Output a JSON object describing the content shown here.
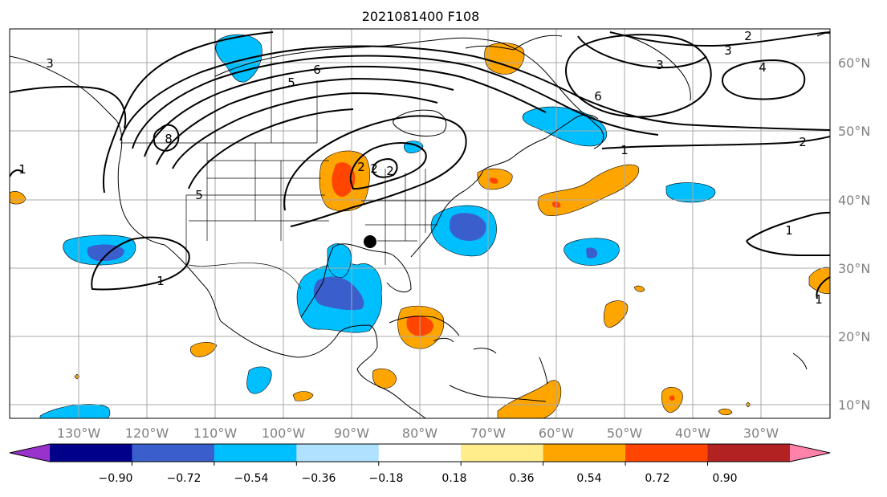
{
  "map": {
    "title": "2021081400 F108",
    "lon_labels": [
      "130°W",
      "120°W",
      "110°W",
      "100°W",
      "90°W",
      "80°W",
      "70°W",
      "60°W",
      "50°W",
      "40°W",
      "30°W"
    ],
    "lat_labels": [
      "60°N",
      "50°N",
      "40°N",
      "30°N",
      "20°N",
      "10°N"
    ],
    "contour_labels": [
      "3",
      "2",
      "3",
      "4",
      "6",
      "1",
      "5",
      "6",
      "3",
      "2",
      "1",
      "1",
      "1",
      "5",
      "2",
      "1",
      "2",
      "8",
      "2"
    ],
    "colorbar": {
      "ticks": [
        "−0.90",
        "−0.72",
        "−0.54",
        "−0.36",
        "−0.18",
        "0.18",
        "0.36",
        "0.54",
        "0.72",
        "0.90"
      ],
      "colors": [
        "#9932cc",
        "#00008b",
        "#3a5fcd",
        "#00bfff",
        "#b0e2ff",
        "#ffffff",
        "#ffec8b",
        "#ffa500",
        "#ff4500",
        "#b22222",
        "#ff82ab"
      ]
    },
    "fill_colors": {
      "light_blue": "#00bfff",
      "mid_blue": "#3a5fcd",
      "orange": "#ffa500",
      "red_orange": "#ff4500"
    }
  }
}
